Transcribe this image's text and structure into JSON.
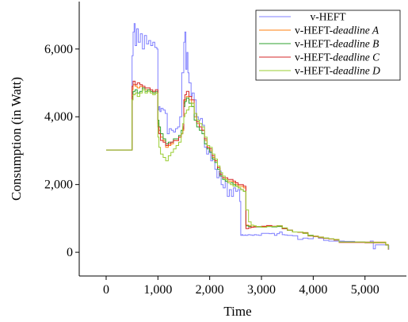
{
  "chart_data": {
    "type": "line",
    "xlabel": "Time",
    "ylabel": "Consumption (in Watt)",
    "xlim": [
      -520,
      5800
    ],
    "ylim": [
      -700,
      7400
    ],
    "xticks": [
      0,
      1000,
      2000,
      3000,
      4000,
      5000
    ],
    "xtick_labels": [
      "0",
      "1,000",
      "2,000",
      "3,000",
      "4,000",
      "5,000"
    ],
    "yticks": [
      0,
      2000,
      4000,
      6000
    ],
    "ytick_labels": [
      "0",
      "2,000",
      "4,000",
      "6,000"
    ],
    "grid": false,
    "legend_position": "top-right",
    "series": [
      {
        "name": "v-HEFT",
        "name_plain": "v-HEFT",
        "name_italic": "",
        "color": "#7f7fff",
        "x": [
          0,
          480,
          500,
          520,
          540,
          560,
          590,
          620,
          660,
          700,
          740,
          780,
          820,
          860,
          900,
          940,
          980,
          1000,
          1020,
          1040,
          1060,
          1100,
          1140,
          1180,
          1220,
          1260,
          1300,
          1340,
          1380,
          1420,
          1460,
          1500,
          1520,
          1540,
          1560,
          1580,
          1600,
          1640,
          1660,
          1700,
          1740,
          1780,
          1820,
          1860,
          1900,
          1940,
          1980,
          2020,
          2060,
          2100,
          2140,
          2180,
          2220,
          2260,
          2300,
          2340,
          2380,
          2420,
          2460,
          2500,
          2540,
          2580,
          2600,
          2620,
          2640,
          2680,
          2700,
          2740,
          2780,
          2820,
          2860,
          2900,
          2950,
          3000,
          3050,
          3100,
          3150,
          3200,
          3250,
          3300,
          3350,
          3400,
          3450,
          3500,
          3600,
          3700,
          3800,
          3900,
          4000,
          4100,
          4200,
          4300,
          4400,
          4500,
          4600,
          4700,
          4800,
          4900,
          5000,
          5100,
          5150,
          5160,
          5200,
          5300,
          5400,
          5450,
          5460
        ],
        "y": [
          3020,
          3020,
          5800,
          6500,
          6750,
          6100,
          6600,
          6200,
          6450,
          6000,
          6400,
          6150,
          6250,
          6100,
          6200,
          6050,
          6000,
          4200,
          4300,
          4150,
          4250,
          4200,
          4100,
          3500,
          3650,
          3600,
          3550,
          3650,
          3700,
          4000,
          5300,
          6200,
          6500,
          5400,
          5900,
          5300,
          5000,
          4600,
          4700,
          4500,
          4000,
          3900,
          3950,
          3750,
          3100,
          2900,
          3000,
          2700,
          2800,
          2450,
          2200,
          2400,
          2000,
          1900,
          2100,
          1650,
          1850,
          1650,
          1900,
          1800,
          1850,
          1500,
          500,
          520,
          500,
          510,
          500,
          520,
          510,
          500,
          520,
          510,
          500,
          560,
          560,
          560,
          550,
          560,
          500,
          550,
          600,
          520,
          510,
          500,
          490,
          380,
          420,
          400,
          480,
          420,
          350,
          330,
          330,
          330,
          320,
          320,
          300,
          300,
          300,
          330,
          330,
          100,
          220,
          220,
          210,
          200,
          80
        ]
      },
      {
        "name": "v-HEFT-deadline A",
        "name_plain": "v-HEFT-",
        "name_italic": "deadline A",
        "color": "#ff7f0e",
        "x": [
          0,
          480,
          500,
          520,
          560,
          600,
          650,
          700,
          750,
          800,
          850,
          900,
          950,
          1000,
          1020,
          1050,
          1100,
          1150,
          1200,
          1250,
          1300,
          1350,
          1400,
          1450,
          1480,
          1500,
          1520,
          1550,
          1600,
          1650,
          1700,
          1750,
          1800,
          1850,
          1900,
          1950,
          2000,
          2050,
          2100,
          2150,
          2200,
          2250,
          2300,
          2350,
          2400,
          2450,
          2500,
          2550,
          2600,
          2650,
          2700,
          2750,
          2800,
          2850,
          2900,
          3000,
          3100,
          3200,
          3300,
          3400,
          3500,
          3600,
          3700,
          3800,
          3900,
          4000,
          4100,
          4200,
          4300,
          4400,
          4500,
          5000,
          5400,
          5450
        ],
        "y": [
          3020,
          3020,
          4800,
          4950,
          4900,
          4850,
          4900,
          4850,
          4800,
          4800,
          4750,
          4700,
          4700,
          3800,
          3600,
          3400,
          3300,
          3100,
          3150,
          3200,
          3300,
          3300,
          3400,
          3500,
          3600,
          4400,
          4500,
          4600,
          4500,
          4400,
          4000,
          3800,
          3700,
          3600,
          3300,
          3100,
          3000,
          2800,
          2700,
          2500,
          2300,
          2200,
          2150,
          2100,
          2100,
          2050,
          2000,
          1950,
          1950,
          1900,
          800,
          780,
          750,
          760,
          760,
          760,
          780,
          760,
          780,
          700,
          650,
          600,
          600,
          580,
          500,
          480,
          450,
          420,
          400,
          380,
          300,
          300,
          230,
          100
        ]
      },
      {
        "name": "v-HEFT-deadline B",
        "name_plain": "v-HEFT-",
        "name_italic": "deadline B",
        "color": "#2ca02c",
        "x": [
          0,
          480,
          500,
          520,
          560,
          600,
          650,
          700,
          750,
          800,
          850,
          900,
          950,
          1000,
          1020,
          1050,
          1100,
          1150,
          1200,
          1250,
          1300,
          1350,
          1400,
          1450,
          1480,
          1500,
          1520,
          1550,
          1600,
          1650,
          1700,
          1750,
          1800,
          1850,
          1900,
          1950,
          2000,
          2050,
          2100,
          2150,
          2200,
          2250,
          2300,
          2350,
          2400,
          2450,
          2500,
          2550,
          2600,
          2650,
          2700,
          2750,
          2800,
          2850,
          2900,
          3000,
          3100,
          3200,
          3300,
          3400,
          3500,
          3600,
          3700,
          3800,
          3900,
          4000,
          4100,
          4200,
          4300,
          4400,
          4500,
          5000,
          5400,
          5450
        ],
        "y": [
          3020,
          3020,
          4600,
          4750,
          4800,
          4700,
          4750,
          4850,
          4750,
          4800,
          4750,
          4700,
          4750,
          3900,
          3700,
          3500,
          3350,
          3200,
          3250,
          3250,
          3350,
          3350,
          3450,
          3600,
          3700,
          4300,
          4450,
          4550,
          4400,
          4300,
          3900,
          3700,
          3600,
          3500,
          3200,
          3050,
          2950,
          2750,
          2650,
          2450,
          2250,
          2150,
          2100,
          2050,
          2050,
          2000,
          1950,
          1900,
          1850,
          1800,
          780,
          760,
          740,
          750,
          750,
          740,
          760,
          750,
          760,
          700,
          650,
          600,
          600,
          570,
          500,
          470,
          440,
          420,
          400,
          370,
          300,
          290,
          220,
          90
        ]
      },
      {
        "name": "v-HEFT-deadline C",
        "name_plain": "v-HEFT-",
        "name_italic": "deadline C",
        "color": "#d62728",
        "x": [
          0,
          480,
          500,
          520,
          560,
          600,
          650,
          700,
          750,
          800,
          850,
          900,
          950,
          1000,
          1020,
          1050,
          1100,
          1150,
          1200,
          1250,
          1300,
          1350,
          1400,
          1450,
          1480,
          1500,
          1520,
          1550,
          1600,
          1650,
          1700,
          1750,
          1800,
          1850,
          1900,
          1950,
          2000,
          2050,
          2100,
          2150,
          2200,
          2250,
          2300,
          2350,
          2400,
          2450,
          2500,
          2550,
          2600,
          2650,
          2700,
          2750,
          2800,
          2850,
          2900,
          3000,
          3100,
          3200,
          3300,
          3400,
          3500,
          3600,
          3700,
          3800,
          3900,
          4000,
          4100,
          4200,
          4300,
          4400,
          4500,
          5000,
          5400,
          5450
        ],
        "y": [
          3020,
          3020,
          4900,
          5050,
          4950,
          5000,
          4950,
          4900,
          4850,
          4850,
          4800,
          4750,
          4800,
          3700,
          3500,
          3300,
          3250,
          3150,
          3200,
          3250,
          3300,
          3300,
          3400,
          3500,
          3650,
          4500,
          4650,
          4750,
          4600,
          4500,
          4100,
          3850,
          3700,
          3600,
          3350,
          3100,
          3050,
          2850,
          2700,
          2500,
          2300,
          2200,
          2200,
          2150,
          2150,
          2100,
          2050,
          2000,
          2000,
          1950,
          700,
          720,
          740,
          750,
          760,
          770,
          790,
          770,
          780,
          700,
          650,
          600,
          590,
          560,
          480,
          460,
          430,
          410,
          390,
          360,
          290,
          280,
          220,
          80
        ]
      },
      {
        "name": "v-HEFT-deadline D",
        "name_plain": "v-HEFT-",
        "name_italic": "deadline D",
        "color": "#9acd32",
        "x": [
          0,
          480,
          500,
          520,
          560,
          600,
          650,
          700,
          750,
          800,
          850,
          900,
          950,
          1000,
          1020,
          1050,
          1100,
          1150,
          1200,
          1250,
          1300,
          1350,
          1400,
          1450,
          1480,
          1500,
          1520,
          1550,
          1600,
          1650,
          1700,
          1750,
          1800,
          1850,
          1900,
          1950,
          2000,
          2050,
          2100,
          2150,
          2200,
          2250,
          2300,
          2350,
          2400,
          2450,
          2500,
          2550,
          2600,
          2650,
          2700,
          2750,
          2800,
          2850,
          2900,
          3000,
          3100,
          3200,
          3300,
          3400,
          3500,
          3600,
          3700,
          3800,
          3900,
          4000,
          4100,
          4200,
          4300,
          4400,
          4500,
          5000,
          5400,
          5450
        ],
        "y": [
          3020,
          3020,
          4500,
          4650,
          4700,
          4600,
          4700,
          4800,
          4700,
          4750,
          4700,
          4650,
          4700,
          3400,
          3100,
          2900,
          2800,
          2700,
          2850,
          2950,
          3050,
          3150,
          3250,
          3500,
          3800,
          4000,
          4100,
          4200,
          4300,
          4400,
          4100,
          3900,
          3800,
          3700,
          3400,
          3150,
          3100,
          2900,
          2750,
          2550,
          2350,
          2250,
          2150,
          2050,
          2000,
          1950,
          1950,
          1900,
          1850,
          1800,
          1250,
          900,
          800,
          780,
          760,
          740,
          760,
          760,
          780,
          720,
          650,
          600,
          600,
          560,
          490,
          470,
          440,
          420,
          400,
          370,
          300,
          290,
          220,
          90
        ]
      }
    ]
  }
}
